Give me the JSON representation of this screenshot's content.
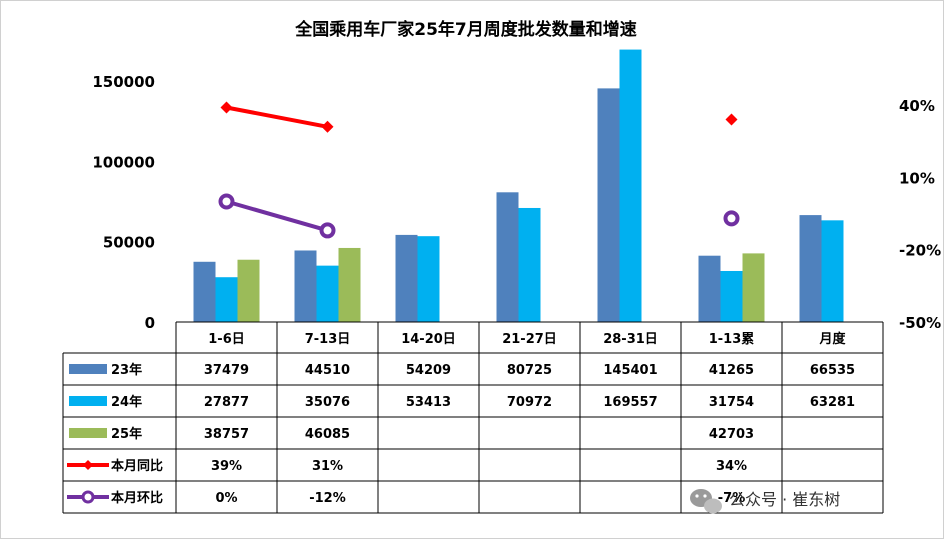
{
  "chart_data": {
    "type": "bar",
    "title": "全国乘用车厂家25年7月周度批发数量和增速",
    "categories": [
      "1-6日",
      "7-13日",
      "14-20日",
      "21-27日",
      "28-31日",
      "1-13累",
      "月度"
    ],
    "ylim": [
      0,
      150000
    ],
    "y_ticks": [
      "0",
      "50000",
      "100000",
      "150000"
    ],
    "y2lim": [
      -50,
      50
    ],
    "y2_ticks": [
      "-50%",
      "-20%",
      "10%",
      "40%"
    ],
    "series": [
      {
        "name": "23年",
        "kind": "bar",
        "color": "#4f81bd",
        "values": [
          37479,
          44510,
          54209,
          80725,
          145401,
          41265,
          66535
        ],
        "labels": [
          "37479",
          "44510",
          "54209",
          "80725",
          "145401",
          "41265",
          "66535"
        ]
      },
      {
        "name": "24年",
        "kind": "bar",
        "color": "#00b0f0",
        "values": [
          27877,
          35076,
          53413,
          70972,
          169557,
          31754,
          63281
        ],
        "labels": [
          "27877",
          "35076",
          "53413",
          "70972",
          "169557",
          "31754",
          "63281"
        ]
      },
      {
        "name": "25年",
        "kind": "bar",
        "color": "#9bbb59",
        "values": [
          38757,
          46085,
          null,
          null,
          null,
          42703,
          null
        ],
        "labels": [
          "38757",
          "46085",
          "",
          "",
          "",
          "42703",
          ""
        ]
      },
      {
        "name": "本月同比",
        "kind": "line",
        "axis": "right",
        "color": "#ff0000",
        "marker": "diamond",
        "values": [
          39,
          31,
          null,
          null,
          null,
          34,
          null
        ],
        "labels": [
          "39%",
          "31%",
          "",
          "",
          "",
          "34%",
          ""
        ]
      },
      {
        "name": "本月环比",
        "kind": "line",
        "axis": "right",
        "color": "#7030a0",
        "marker": "circle",
        "values": [
          0,
          -12,
          null,
          null,
          null,
          -7,
          null
        ],
        "labels": [
          "0%",
          "-12%",
          "",
          "",
          "",
          "-7%",
          ""
        ]
      }
    ]
  },
  "watermark": {
    "text": "公众号 · 崔东树",
    "icon": "wechat-icon"
  }
}
